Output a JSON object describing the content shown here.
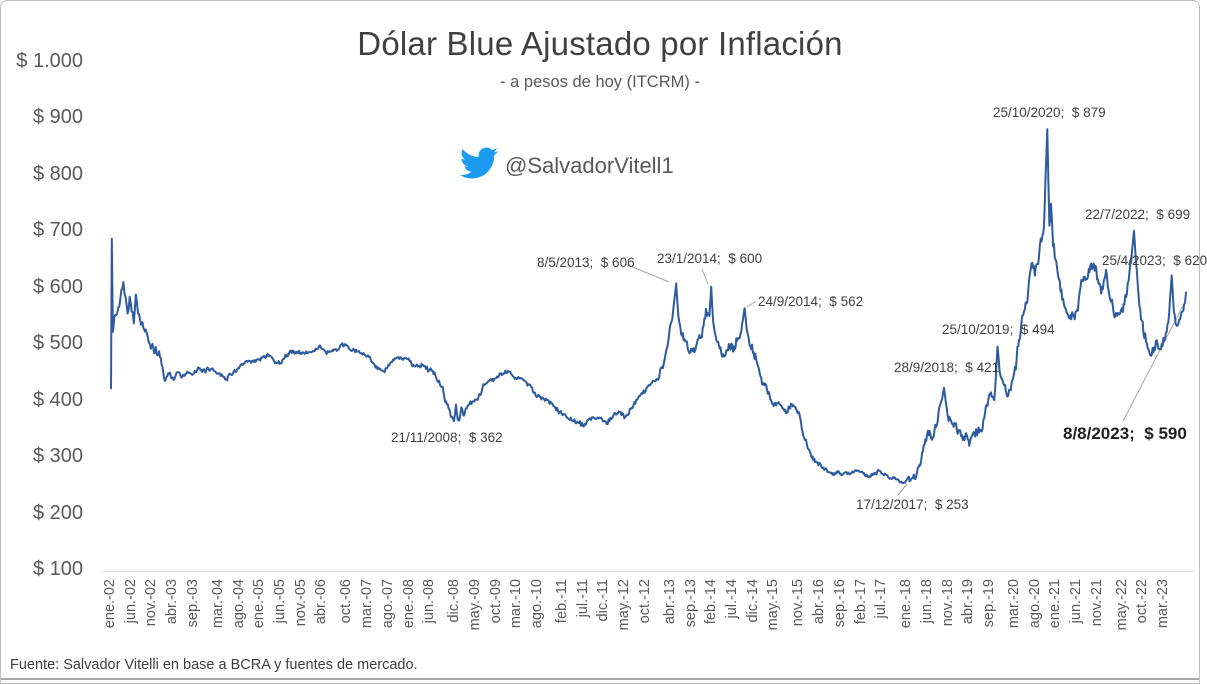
{
  "header": {
    "title": "Dólar Blue Ajustado por Inflación",
    "subtitle": "- a pesos de hoy (ITCRM) -"
  },
  "watermark": {
    "handle": "@SalvadorVitell1",
    "icon": "twitter-bird-icon",
    "icon_color": "#1d9bf0"
  },
  "footer": {
    "source": "Fuente: Salvador Vitelli en base a BCRA y fuentes de mercado."
  },
  "chart_data": {
    "type": "line",
    "title": "Dólar Blue Ajustado por Inflación",
    "subtitle": "- a pesos de hoy (ITCRM) -",
    "legend": "none",
    "grid": "x-axis baseline only",
    "line_color": "#2e5b9e",
    "leader_line_color": "#a6a6a6",
    "axis_text_color": "#595959",
    "y_axis": {
      "currency": "ARS",
      "range": [
        100,
        1000
      ],
      "tick_values": [
        1000,
        900,
        800,
        700,
        600,
        500,
        400,
        300,
        200,
        100
      ],
      "tick_labels": [
        "$ 1.000",
        "$ 900",
        "$ 800",
        "$ 700",
        "$ 600",
        "$ 500",
        "$ 400",
        "$ 300",
        "$ 200",
        "$ 100"
      ]
    },
    "x_axis": {
      "unit": "month index from ene-2002 = 0",
      "range_months": [
        0,
        259.25
      ],
      "tick_labels": [
        "ene.-02",
        "jun.-02",
        "nov.-02",
        "abr.-03",
        "sep.-03",
        "mar.-04",
        "ago.-04",
        "ene.-05",
        "jun.-05",
        "nov.-05",
        "abr.-06",
        "oct.-06",
        "mar.-07",
        "ago.-07",
        "ene.-08",
        "jun.-08",
        "dic.-08",
        "may.-09",
        "oct.-09",
        "mar.-10",
        "ago.-10",
        "feb.-11",
        "jul.-11",
        "dic.-11",
        "may.-12",
        "oct.-12",
        "abr.-13",
        "sep.-13",
        "feb.-14",
        "jul.-14",
        "dic.-14",
        "may.-15",
        "nov.-15",
        "abr.-16",
        "sep.-16",
        "feb.-17",
        "jul.-17",
        "ene.-18",
        "jun.-18",
        "nov.-18",
        "abr.-19",
        "sep.-19",
        "mar.-20",
        "ago.-20",
        "ene.-21",
        "jun.-21",
        "nov.-21",
        "may.-22",
        "oct.-22",
        "mar.-23"
      ],
      "tick_months": [
        0,
        5,
        10,
        15,
        20,
        26,
        31,
        36,
        41,
        46,
        51,
        57,
        62,
        67,
        72,
        77,
        83,
        88,
        93,
        98,
        103,
        109,
        114,
        119,
        124,
        129,
        135,
        140,
        145,
        150,
        155,
        160,
        166,
        171,
        176,
        181,
        186,
        192,
        197,
        202,
        207,
        212,
        218,
        223,
        228,
        233,
        238,
        244,
        249,
        254
      ]
    },
    "annotations": [
      {
        "date": "21/11/2008",
        "value": 362,
        "label": "21/11/2008;  $ 362",
        "month": 82.7,
        "tx": 390,
        "ty": 429,
        "bold": false,
        "leader": null
      },
      {
        "date": "8/5/2013",
        "value": 606,
        "label": "8/5/2013;  $ 606",
        "month": 136.3,
        "tx": 536,
        "ty": 254,
        "bold": false,
        "leader": [
          624,
          263,
          668,
          281
        ]
      },
      {
        "date": "23/1/2014",
        "value": 600,
        "label": "23/1/2014;  $ 600",
        "month": 144.75,
        "tx": 656,
        "ty": 250,
        "bold": false,
        "leader": [
          701,
          268,
          707,
          283
        ]
      },
      {
        "date": "24/9/2014",
        "value": 562,
        "label": "24/9/2014;  $ 562",
        "month": 152.8,
        "tx": 757,
        "ty": 293,
        "bold": false,
        "leader": [
          755,
          300,
          746,
          306
        ]
      },
      {
        "date": "17/12/2017",
        "value": 253,
        "label": "17/12/2017;  $ 253",
        "month": 191.5,
        "tx": 855,
        "ty": 496,
        "bold": false,
        "leader": [
          897,
          494,
          906,
          483
        ]
      },
      {
        "date": "28/9/2018",
        "value": 421,
        "label": "28/9/2018;  $ 421",
        "month": 200.9,
        "tx": 893,
        "ty": 359,
        "bold": false,
        "leader": null
      },
      {
        "date": "25/10/2019",
        "value": 494,
        "label": "25/10/2019;  $ 494",
        "month": 213.8,
        "tx": 941,
        "ty": 321,
        "bold": false,
        "leader": null
      },
      {
        "date": "25/10/2020",
        "value": 879,
        "label": "25/10/2020;  $ 879",
        "month": 225.8,
        "tx": 992,
        "ty": 104,
        "bold": false,
        "leader": null
      },
      {
        "date": "22/7/2022",
        "value": 699,
        "label": "22/7/2022;  $ 699",
        "month": 246.7,
        "tx": 1084,
        "ty": 206,
        "bold": false,
        "leader": null
      },
      {
        "date": "25/4/2023",
        "value": 620,
        "label": "25/4/2023;  $ 620",
        "month": 255.8,
        "tx": 1101,
        "ty": 252,
        "bold": false,
        "leader": null
      },
      {
        "date": "8/8/2023",
        "value": 590,
        "label": "8/8/2023;  $ 590",
        "month": 259.25,
        "tx": 1062,
        "ty": 423,
        "bold": true,
        "leader": [
          1122,
          420,
          1183,
          303
        ]
      }
    ],
    "series": [
      {
        "name": "Dólar blue ajustado por inflación (a pesos de hoy, ITCRM)",
        "anchor_points_month_value": [
          [
            0,
            420
          ],
          [
            0.2,
            685
          ],
          [
            0.45,
            520
          ],
          [
            0.8,
            545
          ],
          [
            1.5,
            555
          ],
          [
            2,
            570
          ],
          [
            2.5,
            600
          ],
          [
            3,
            610
          ],
          [
            3.5,
            585
          ],
          [
            4,
            560
          ],
          [
            4.5,
            590
          ],
          [
            5,
            570
          ],
          [
            5.5,
            545
          ],
          [
            6,
            595
          ],
          [
            6.5,
            560
          ],
          [
            7,
            540
          ],
          [
            8,
            525
          ],
          [
            9,
            505
          ],
          [
            10,
            490
          ],
          [
            11,
            482
          ],
          [
            12,
            470
          ],
          [
            13,
            432
          ],
          [
            14,
            448
          ],
          [
            15,
            436
          ],
          [
            16,
            452
          ],
          [
            17,
            442
          ],
          [
            18,
            450
          ],
          [
            19,
            446
          ],
          [
            20,
            444
          ],
          [
            21,
            452
          ],
          [
            22,
            446
          ],
          [
            23,
            452
          ],
          [
            24,
            456
          ],
          [
            26,
            448
          ],
          [
            28,
            442
          ],
          [
            30,
            454
          ],
          [
            32,
            462
          ],
          [
            34,
            466
          ],
          [
            36,
            470
          ],
          [
            38,
            482
          ],
          [
            40,
            466
          ],
          [
            42,
            476
          ],
          [
            44,
            486
          ],
          [
            46,
            480
          ],
          [
            48,
            484
          ],
          [
            50,
            492
          ],
          [
            52,
            486
          ],
          [
            54,
            490
          ],
          [
            56,
            494
          ],
          [
            58,
            488
          ],
          [
            60,
            482
          ],
          [
            62,
            472
          ],
          [
            64,
            458
          ],
          [
            66,
            450
          ],
          [
            68,
            466
          ],
          [
            70,
            468
          ],
          [
            72,
            470
          ],
          [
            74,
            464
          ],
          [
            76,
            454
          ],
          [
            78,
            442
          ],
          [
            80,
            418
          ],
          [
            81,
            398
          ],
          [
            82,
            376
          ],
          [
            82.7,
            362
          ],
          [
            83.2,
            392
          ],
          [
            83.6,
            368
          ],
          [
            84,
            372
          ],
          [
            84.5,
            395
          ],
          [
            85,
            380
          ],
          [
            86,
            388
          ],
          [
            88,
            402
          ],
          [
            90,
            424
          ],
          [
            92,
            438
          ],
          [
            94,
            446
          ],
          [
            96,
            448
          ],
          [
            98,
            441
          ],
          [
            100,
            430
          ],
          [
            102,
            414
          ],
          [
            104,
            400
          ],
          [
            106,
            390
          ],
          [
            108,
            378
          ],
          [
            110,
            369
          ],
          [
            112,
            361
          ],
          [
            114,
            354
          ],
          [
            116,
            366
          ],
          [
            118,
            359
          ],
          [
            120,
            364
          ],
          [
            122,
            376
          ],
          [
            124,
            371
          ],
          [
            126,
            392
          ],
          [
            128,
            412
          ],
          [
            130,
            428
          ],
          [
            132,
            442
          ],
          [
            134,
            485
          ],
          [
            135.6,
            555
          ],
          [
            136.3,
            606
          ],
          [
            136.8,
            545
          ],
          [
            137.5,
            520
          ],
          [
            138.5,
            498
          ],
          [
            139.5,
            482
          ],
          [
            140.5,
            492
          ],
          [
            141.5,
            512
          ],
          [
            142.5,
            525
          ],
          [
            143.5,
            565
          ],
          [
            144.3,
            552
          ],
          [
            144.75,
            600
          ],
          [
            145.2,
            540
          ],
          [
            146,
            505
          ],
          [
            147,
            482
          ],
          [
            148,
            472
          ],
          [
            149,
            492
          ],
          [
            150,
            486
          ],
          [
            151,
            502
          ],
          [
            152,
            522
          ],
          [
            152.8,
            562
          ],
          [
            153.3,
            528
          ],
          [
            154,
            502
          ],
          [
            155,
            482
          ],
          [
            156,
            462
          ],
          [
            157,
            432
          ],
          [
            158,
            422
          ],
          [
            159,
            402
          ],
          [
            160,
            392
          ],
          [
            161,
            397
          ],
          [
            162,
            386
          ],
          [
            163,
            381
          ],
          [
            164,
            391
          ],
          [
            165,
            386
          ],
          [
            166,
            372
          ],
          [
            167,
            342
          ],
          [
            168,
            322
          ],
          [
            169,
            302
          ],
          [
            170,
            291
          ],
          [
            171,
            286
          ],
          [
            172,
            276
          ],
          [
            173,
            271
          ],
          [
            174,
            269
          ],
          [
            175,
            273
          ],
          [
            176,
            271
          ],
          [
            177,
            269
          ],
          [
            178,
            267
          ],
          [
            179,
            271
          ],
          [
            180,
            273
          ],
          [
            181,
            269
          ],
          [
            182,
            266
          ],
          [
            183,
            263
          ],
          [
            184,
            267
          ],
          [
            185,
            271
          ],
          [
            186,
            269
          ],
          [
            187,
            265
          ],
          [
            188,
            263
          ],
          [
            189,
            261
          ],
          [
            190,
            259
          ],
          [
            191.5,
            253
          ],
          [
            192.2,
            263
          ],
          [
            193,
            269
          ],
          [
            194,
            273
          ],
          [
            195,
            281
          ],
          [
            196,
            312
          ],
          [
            197,
            342
          ],
          [
            198,
            331
          ],
          [
            199,
            362
          ],
          [
            200,
            392
          ],
          [
            200.9,
            421
          ],
          [
            201.3,
            398
          ],
          [
            202,
            372
          ],
          [
            203,
            356
          ],
          [
            204,
            351
          ],
          [
            205,
            341
          ],
          [
            206,
            336
          ],
          [
            207,
            331
          ],
          [
            208,
            339
          ],
          [
            209,
            346
          ],
          [
            210,
            341
          ],
          [
            211,
            376
          ],
          [
            212,
            402
          ],
          [
            213,
            391
          ],
          [
            213.8,
            494
          ],
          [
            214.3,
            448
          ],
          [
            215,
            432
          ],
          [
            216,
            426
          ],
          [
            217,
            420
          ],
          [
            218,
            462
          ],
          [
            219,
            512
          ],
          [
            220,
            562
          ],
          [
            221,
            592
          ],
          [
            222,
            642
          ],
          [
            223,
            622
          ],
          [
            224,
            652
          ],
          [
            225,
            702
          ],
          [
            225.8,
            879
          ],
          [
            226.3,
            700
          ],
          [
            226.7,
            740
          ],
          [
            227.2,
            672
          ],
          [
            228,
            642
          ],
          [
            229,
            592
          ],
          [
            230,
            562
          ],
          [
            231,
            546
          ],
          [
            232,
            556
          ],
          [
            233,
            566
          ],
          [
            234,
            616
          ],
          [
            235,
            602
          ],
          [
            236,
            616
          ],
          [
            237,
            636
          ],
          [
            238,
            612
          ],
          [
            239,
            602
          ],
          [
            240,
            636
          ],
          [
            241,
            592
          ],
          [
            242,
            566
          ],
          [
            243,
            551
          ],
          [
            244,
            561
          ],
          [
            245,
            586
          ],
          [
            246,
            642
          ],
          [
            246.7,
            699
          ],
          [
            247.2,
            648
          ],
          [
            248,
            582
          ],
          [
            249,
            532
          ],
          [
            250,
            496
          ],
          [
            251,
            481
          ],
          [
            252,
            506
          ],
          [
            253,
            496
          ],
          [
            254,
            506
          ],
          [
            255,
            532
          ],
          [
            255.8,
            620
          ],
          [
            256.3,
            558
          ],
          [
            257,
            526
          ],
          [
            258,
            541
          ],
          [
            259,
            572
          ],
          [
            259.25,
            590
          ]
        ]
      }
    ]
  }
}
